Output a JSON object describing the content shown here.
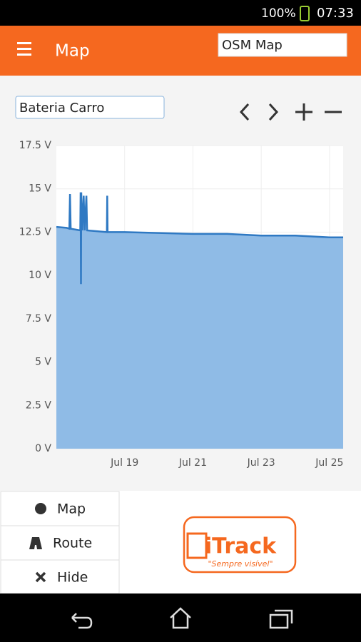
{
  "status": {
    "battery": "100%",
    "time": "07:33"
  },
  "appbar": {
    "title": "Map",
    "map_select": "OSM Map"
  },
  "device_select": "Bateria Carro",
  "buttons": [
    "Map",
    "Route",
    "Hide"
  ],
  "logo": {
    "name": "iTrack",
    "slogan": "\"Sempre visível\""
  },
  "chart_data": {
    "type": "area",
    "x": [
      17.0,
      17.3,
      17.38,
      17.4,
      17.42,
      17.7,
      17.71,
      17.72,
      17.73,
      17.76,
      17.8,
      17.83,
      17.88,
      17.9,
      18.48,
      18.49,
      18.5,
      19.0,
      20.0,
      21.0,
      22.0,
      23.0,
      24.0,
      25.0,
      25.4
    ],
    "series": [
      {
        "color": "#2f79c3",
        "fill": "#8fbbe6",
        "values": [
          12.8,
          12.75,
          12.7,
          14.7,
          12.7,
          12.6,
          14.8,
          9.5,
          14.8,
          12.6,
          14.6,
          12.6,
          14.6,
          12.6,
          12.5,
          14.6,
          12.5,
          12.5,
          12.45,
          12.4,
          12.4,
          12.3,
          12.3,
          12.2,
          12.2
        ]
      }
    ],
    "xlim": [
      17.0,
      25.4
    ],
    "xticks": [
      {
        "value": 19,
        "label": "Jul 19"
      },
      {
        "value": 21,
        "label": "Jul 21"
      },
      {
        "value": 23,
        "label": "Jul 23"
      },
      {
        "value": 25,
        "label": "Jul 25"
      }
    ],
    "ylim": [
      0,
      17.5
    ],
    "yticks": [
      {
        "value": 0,
        "label": "0 V"
      },
      {
        "value": 2.5,
        "label": "2.5 V"
      },
      {
        "value": 5,
        "label": "5 V"
      },
      {
        "value": 7.5,
        "label": "7.5 V"
      },
      {
        "value": 10,
        "label": "10 V"
      },
      {
        "value": 12.5,
        "label": "12.5 V"
      },
      {
        "value": 15,
        "label": "15 V"
      },
      {
        "value": 17.5,
        "label": "17.5 V"
      }
    ],
    "grid": true
  }
}
